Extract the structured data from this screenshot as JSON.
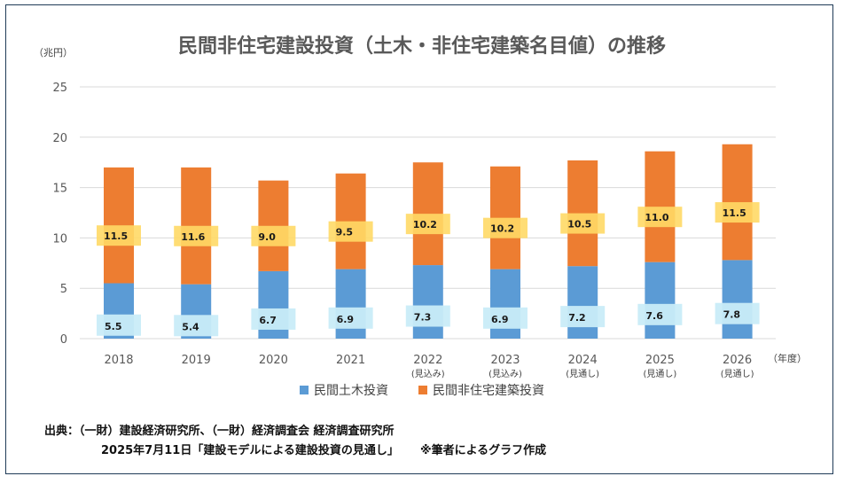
{
  "title": "民間非住宅建設投資（土木・非住宅建築名目値）の推移",
  "y_unit": "（兆円）",
  "x_unit": "（年度）",
  "colors": {
    "civil": "#5b9bd5",
    "nonres": "#ed7d31",
    "civil_label_bg": "#c9ecf8",
    "nonres_label_bg": "#ffd966",
    "grid": "#d9d9d9",
    "frame": "#1f3b57"
  },
  "chart_data": {
    "type": "bar",
    "stacked": true,
    "categories": [
      "2018",
      "2019",
      "2020",
      "2021",
      "2022",
      "2023",
      "2024",
      "2025",
      "2026"
    ],
    "category_notes": [
      "",
      "",
      "",
      "",
      "(見込み)",
      "(見込み)",
      "(見通し)",
      "(見通し)",
      "(見通し)"
    ],
    "series": [
      {
        "name": "民間土木投資",
        "values": [
          5.5,
          5.4,
          6.7,
          6.9,
          7.3,
          6.9,
          7.2,
          7.6,
          7.8
        ]
      },
      {
        "name": "民間非住宅建築投資",
        "values": [
          11.5,
          11.6,
          9.0,
          9.5,
          10.2,
          10.2,
          10.5,
          11.0,
          11.5
        ]
      }
    ],
    "ylim": [
      0,
      25
    ],
    "yticks": [
      0,
      5,
      10,
      15,
      20,
      25
    ],
    "grid": true,
    "legend": "bottom"
  },
  "legend": {
    "civil": "民間土木投資",
    "nonres": "民間非住宅建築投資"
  },
  "source": {
    "line1": "出典：（一財）建設経済研究所、（一財）経済調査会 経済調査研究所",
    "line2a": "2025年7月11日「建設モデルによる建設投資の見通し」",
    "line2b": "※筆者によるグラフ作成"
  }
}
